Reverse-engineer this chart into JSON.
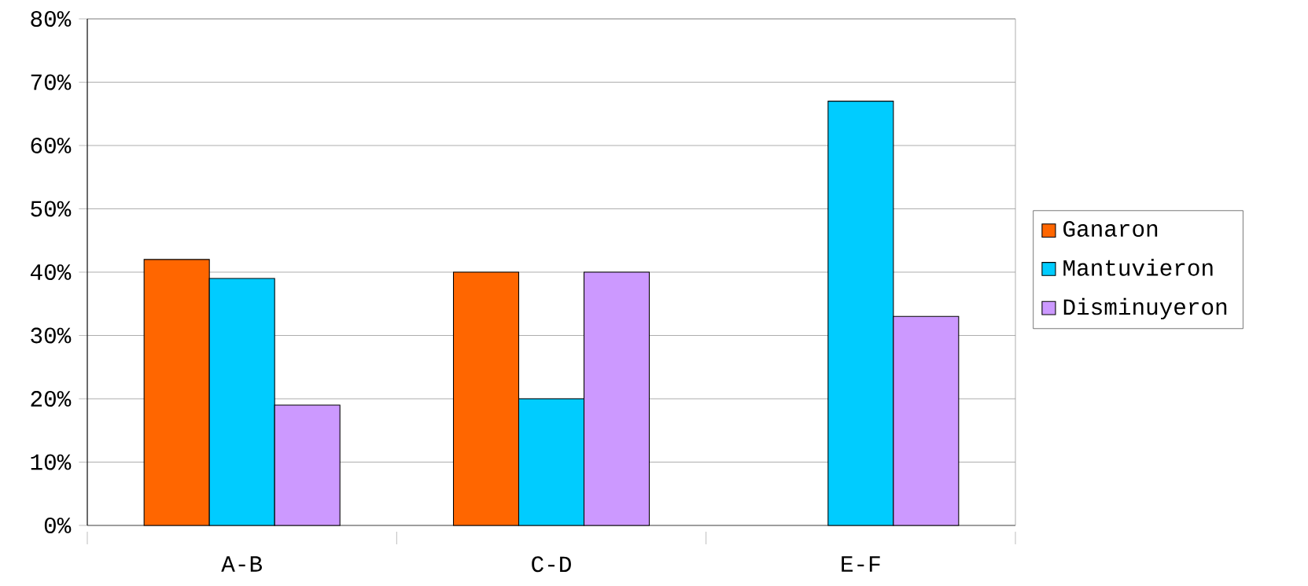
{
  "chart_data": {
    "type": "bar",
    "categories": [
      "A-B",
      "C-D",
      "E-F"
    ],
    "series": [
      {
        "name": "Ganaron",
        "color": "#ff6600",
        "values": [
          42,
          40,
          null
        ]
      },
      {
        "name": "Mantuvieron",
        "color": "#00ccff",
        "values": [
          39,
          20,
          67
        ]
      },
      {
        "name": "Disminuyeron",
        "color": "#cc99ff",
        "values": [
          19,
          40,
          33
        ]
      }
    ],
    "ylim": [
      0,
      80
    ],
    "yticks": [
      {
        "value": 0,
        "label": "0%"
      },
      {
        "value": 10,
        "label": "10%"
      },
      {
        "value": 20,
        "label": "20%"
      },
      {
        "value": 30,
        "label": "30%"
      },
      {
        "value": 40,
        "label": "40%"
      },
      {
        "value": 50,
        "label": "50%"
      },
      {
        "value": 60,
        "label": "60%"
      },
      {
        "value": 70,
        "label": "70%"
      },
      {
        "value": 80,
        "label": "80%"
      }
    ],
    "grid": "y",
    "legend": "right"
  }
}
